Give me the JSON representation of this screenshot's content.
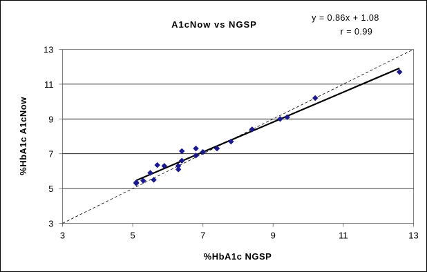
{
  "chart_data": {
    "type": "scatter",
    "title": "A1cNow vs NGSP",
    "annotations": [
      "y = 0.86x + 1.08",
      "r = 0.99"
    ],
    "xlabel": "%HbA1c NGSP",
    "ylabel": "%HbA1c A1cNow",
    "xlim": [
      3,
      13
    ],
    "ylim": [
      3,
      13
    ],
    "xticks": [
      "3",
      "5",
      "7",
      "9",
      "11",
      "13"
    ],
    "yticks": [
      "3",
      "5",
      "7",
      "9",
      "11",
      "13"
    ],
    "grid": "horizontal",
    "marker_color": "#1a1a8c",
    "points": [
      {
        "x": 5.1,
        "y": 5.3
      },
      {
        "x": 5.1,
        "y": 5.35
      },
      {
        "x": 5.3,
        "y": 5.45
      },
      {
        "x": 5.5,
        "y": 5.9
      },
      {
        "x": 5.6,
        "y": 5.5
      },
      {
        "x": 5.7,
        "y": 6.35
      },
      {
        "x": 5.9,
        "y": 6.3
      },
      {
        "x": 6.3,
        "y": 6.3
      },
      {
        "x": 6.3,
        "y": 6.1
      },
      {
        "x": 6.4,
        "y": 6.6
      },
      {
        "x": 6.4,
        "y": 7.15
      },
      {
        "x": 6.8,
        "y": 6.9
      },
      {
        "x": 6.8,
        "y": 7.3
      },
      {
        "x": 7.0,
        "y": 7.1
      },
      {
        "x": 7.4,
        "y": 7.3
      },
      {
        "x": 7.8,
        "y": 7.7
      },
      {
        "x": 8.4,
        "y": 8.4
      },
      {
        "x": 9.2,
        "y": 9.0
      },
      {
        "x": 9.4,
        "y": 9.1
      },
      {
        "x": 10.2,
        "y": 10.2
      },
      {
        "x": 12.6,
        "y": 11.7
      }
    ],
    "regression": {
      "slope": 0.86,
      "intercept": 1.08,
      "x_range": [
        5.1,
        12.6
      ]
    },
    "identity_line": {
      "from": [
        3,
        3
      ],
      "to": [
        13,
        13
      ],
      "style": "dashed"
    }
  }
}
